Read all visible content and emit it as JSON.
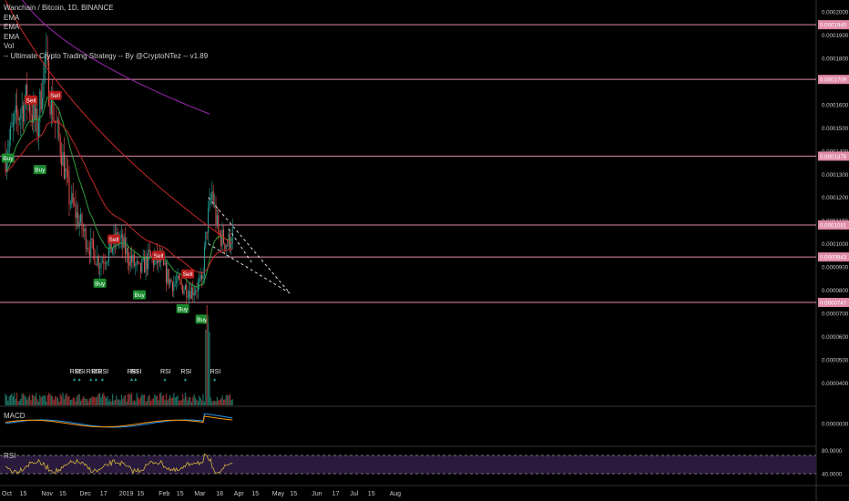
{
  "chart_data": {
    "type": "candlestick",
    "title": "Wanchain / Bitcoin, 1D, BINANCE",
    "indicators": [
      "EMA",
      "EMA",
      "EMA",
      "Vol",
      "-- Ultimate Crypto Trading Strategy -- By @CryptoNTez -- v1.89"
    ],
    "price_axis": {
      "ticks": [
        "0.0002000",
        "0.0001900",
        "0.0001800",
        "0.0001600",
        "0.0001500",
        "0.0001400",
        "0.0001300",
        "0.0001200",
        "0.0001100",
        "0.0001000",
        "0.0000900",
        "0.0000800",
        "0.0000700",
        "0.0000600",
        "0.0000500",
        "0.0000400"
      ],
      "highlighted_levels": [
        "0.0001945",
        "0.0001709",
        "0.0001378",
        "0.0001081",
        "0.0000943",
        "0.0000747"
      ]
    },
    "x_axis_ticks": [
      "Oct",
      "15",
      "Nov",
      "15",
      "Dec",
      "17",
      "2019",
      "15",
      "Feb",
      "15",
      "Mar",
      "18",
      "Apr",
      "15",
      "May",
      "15",
      "Jun",
      "17",
      "Jul",
      "15",
      "Aug"
    ],
    "signals": [
      {
        "label": "Buy",
        "date": "2018-10-03",
        "price": 0.000137
      },
      {
        "label": "Sell",
        "date": "2018-10-21",
        "price": 0.000162
      },
      {
        "label": "Buy",
        "date": "2018-10-28",
        "price": 0.000132
      },
      {
        "label": "Sell",
        "date": "2018-11-09",
        "price": 0.000164
      },
      {
        "label": "Sell",
        "date": "2018-12-25",
        "price": 0.000102
      },
      {
        "label": "Buy",
        "date": "2018-12-14",
        "price": 8.3e-05
      },
      {
        "label": "Sell",
        "date": "2019-01-29",
        "price": 9.5e-05
      },
      {
        "label": "Buy",
        "date": "2019-01-14",
        "price": 7.8e-05
      },
      {
        "label": "Sell",
        "date": "2019-02-21",
        "price": 8.7e-05
      },
      {
        "label": "Buy",
        "date": "2019-02-17",
        "price": 7.2e-05
      },
      {
        "label": "Buy",
        "date": "2019-03-04",
        "price": 6.75e-05
      }
    ],
    "rsi_signals": [
      {
        "label": "RSI",
        "date": "2018-11-24"
      },
      {
        "label": "RSI",
        "date": "2018-11-28"
      },
      {
        "label": "RSI",
        "date": "2018-12-07"
      },
      {
        "label": "RSI",
        "date": "2018-12-11"
      },
      {
        "label": "RSI",
        "date": "2018-12-16"
      },
      {
        "label": "RSI",
        "date": "2019-01-08"
      },
      {
        "label": "RSI",
        "date": "2019-01-11"
      },
      {
        "label": "RSI",
        "date": "2019-02-03"
      },
      {
        "label": "RSI",
        "date": "2019-02-19"
      },
      {
        "label": "RSI",
        "date": "2019-03-14"
      }
    ],
    "macd_label": "MACD",
    "macd_axis_tick": "0.0000000",
    "rsi_label": "RSI",
    "rsi_axis_ticks": [
      "80.0000",
      "40.0000"
    ],
    "colors": {
      "up": "#26a69a",
      "down": "#ef5350",
      "ema_fast": "#2e9e3e",
      "ema_mid": "#c62828",
      "ema_slow": "#9c27b0",
      "level": "#e08aa8",
      "macd": "#2196f3",
      "signal": "#ff9800",
      "rsi": "#d4b43c",
      "rsi_band": "#2a1a3e"
    }
  }
}
